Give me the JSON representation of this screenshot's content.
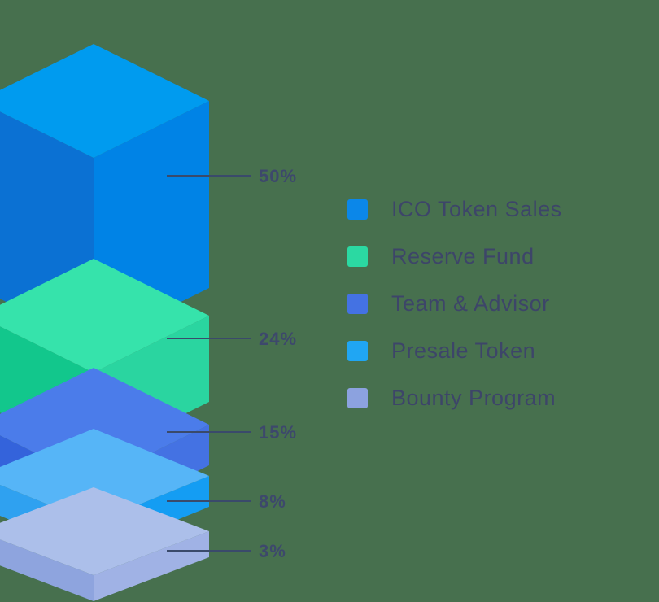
{
  "background_color": "#47704E",
  "text_color": "#3D4569",
  "value_label_color": "#3D486C",
  "leader_line_color": "#3A4A6B",
  "chart_data": {
    "type": "stacked-isometric-bar",
    "title": "",
    "legend_position": "right",
    "grid": false,
    "segments": [
      {
        "label": "ICO Token Sales",
        "value": 50,
        "value_label": "50%",
        "legend_color": "#0B87E9",
        "faces": {
          "top": "#009BEF",
          "left": "#0B71D3",
          "right": "#0083E6"
        }
      },
      {
        "label": "Reserve Fund",
        "value": 24,
        "value_label": "24%",
        "legend_color": "#2BD9A2",
        "faces": {
          "top": "#36E3AB",
          "left": "#12C78C",
          "right": "#2AD5A0"
        }
      },
      {
        "label": "Team & Advisor",
        "value": 15,
        "value_label": "15%",
        "legend_color": "#4472E3",
        "faces": {
          "top": "#4B7CEA",
          "left": "#3463DB",
          "right": "#4472E3"
        }
      },
      {
        "label": "Presale Token",
        "value": 8,
        "value_label": "8%",
        "legend_color": "#20A6F3",
        "faces": {
          "top": "#56B5F7",
          "left": "#2FA1F0",
          "right": "#149DF3"
        }
      },
      {
        "label": "Bounty Program",
        "value": 3,
        "value_label": "3%",
        "legend_color": "#8CA2DF",
        "faces": {
          "top": "#ACBFEA",
          "left": "#8EA4DE",
          "right": "#A0B2E5"
        }
      }
    ]
  }
}
